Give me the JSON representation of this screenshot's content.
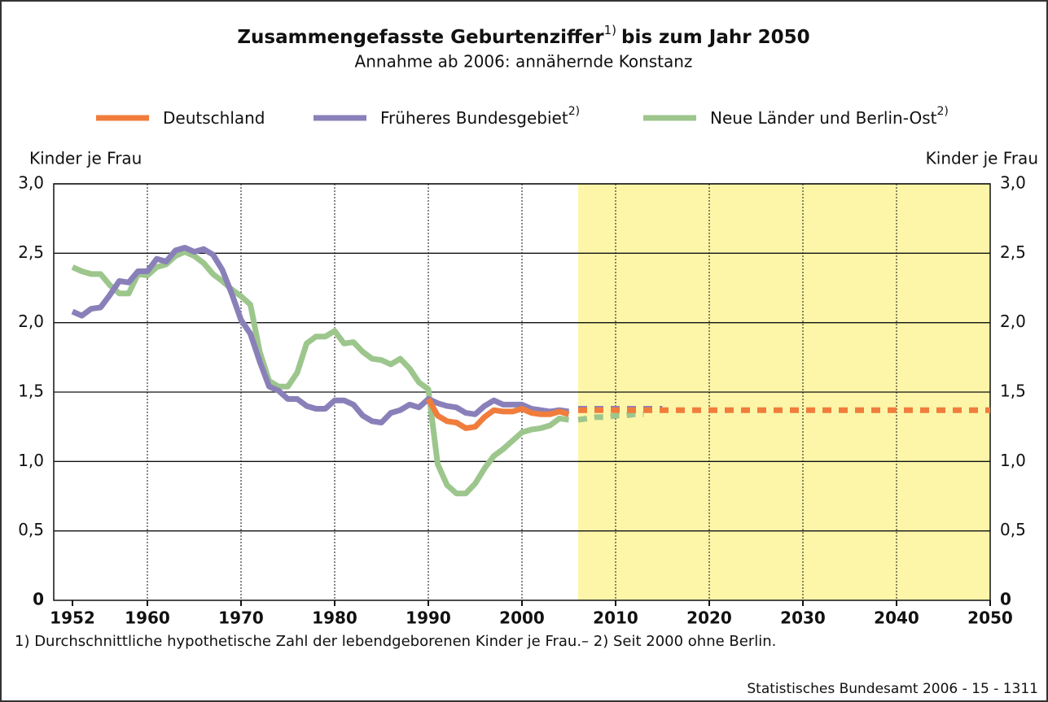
{
  "chart_data": {
    "type": "line",
    "title": "Zusammengefasste Geburtenziffer",
    "title_note": "1)",
    "title_end": "bis zum Jahr 2050",
    "subtitle": "Annahme ab 2006: annähernde Konstanz",
    "y_label": "Kinder je Frau",
    "footnote": "1) Durchschnittliche hypothetische Zahl der lebendgeborenen Kinder je Frau.– 2) Seit 2000 ohne Berlin.",
    "source": "Statistisches Bundesamt 2006 - 15 - 1311",
    "projection_start": 2006,
    "x": [
      1952,
      1953,
      1954,
      1955,
      1956,
      1957,
      1958,
      1959,
      1960,
      1961,
      1962,
      1963,
      1964,
      1965,
      1966,
      1967,
      1968,
      1969,
      1970,
      1971,
      1972,
      1973,
      1974,
      1975,
      1976,
      1977,
      1978,
      1979,
      1980,
      1981,
      1982,
      1983,
      1984,
      1985,
      1986,
      1987,
      1988,
      1989,
      1990,
      1991,
      1992,
      1993,
      1994,
      1995,
      1996,
      1997,
      1998,
      1999,
      2000,
      2001,
      2002,
      2003,
      2004,
      2005,
      2006,
      2007,
      2008,
      2009,
      2010,
      2011,
      2012,
      2013,
      2014,
      2015,
      2016,
      2017,
      2018,
      2019,
      2020,
      2021,
      2022,
      2023,
      2024,
      2025,
      2026,
      2027,
      2028,
      2029,
      2030,
      2031,
      2032,
      2033,
      2034,
      2035,
      2036,
      2037,
      2038,
      2039,
      2040,
      2041,
      2042,
      2043,
      2044,
      2045,
      2046,
      2047,
      2048,
      2049,
      2050
    ],
    "series": [
      {
        "name": "Neue Länder und Berlin-Ost",
        "note": "2)",
        "color": "#9dc68d",
        "values": [
          2.4,
          2.37,
          2.35,
          2.35,
          2.27,
          2.21,
          2.21,
          2.35,
          2.34,
          2.4,
          2.42,
          2.48,
          2.51,
          2.48,
          2.43,
          2.35,
          2.3,
          2.24,
          2.19,
          2.13,
          1.79,
          1.58,
          1.54,
          1.54,
          1.64,
          1.85,
          1.9,
          1.9,
          1.94,
          1.85,
          1.86,
          1.79,
          1.74,
          1.73,
          1.7,
          1.74,
          1.67,
          1.57,
          1.52,
          0.98,
          0.83,
          0.77,
          0.77,
          0.84,
          0.95,
          1.04,
          1.09,
          1.15,
          1.21,
          1.23,
          1.24,
          1.26,
          1.31,
          1.3,
          1.3,
          1.31,
          1.32,
          1.32,
          1.33,
          1.33,
          1.34,
          1.34,
          null,
          null,
          null,
          null,
          null,
          null,
          null,
          null,
          null,
          null,
          null,
          null,
          null,
          null,
          null,
          null,
          null,
          null,
          null,
          null,
          null,
          null,
          null,
          null,
          null,
          null,
          null,
          null,
          null,
          null,
          null,
          null,
          null,
          null,
          null,
          null,
          null
        ]
      },
      {
        "name": "Früheres Bundesgebiet",
        "note": "2)",
        "color": "#8a80b9",
        "values": [
          2.08,
          2.05,
          2.1,
          2.11,
          2.2,
          2.3,
          2.29,
          2.37,
          2.37,
          2.46,
          2.44,
          2.52,
          2.54,
          2.51,
          2.53,
          2.49,
          2.38,
          2.21,
          2.02,
          1.92,
          1.72,
          1.54,
          1.51,
          1.45,
          1.45,
          1.4,
          1.38,
          1.38,
          1.44,
          1.44,
          1.41,
          1.33,
          1.29,
          1.28,
          1.35,
          1.37,
          1.41,
          1.39,
          1.45,
          1.42,
          1.4,
          1.39,
          1.35,
          1.34,
          1.4,
          1.44,
          1.41,
          1.41,
          1.41,
          1.38,
          1.37,
          1.36,
          1.37,
          1.36,
          1.38,
          1.38,
          1.38,
          1.38,
          1.38,
          1.38,
          1.38,
          1.38,
          1.38,
          1.38,
          null,
          null,
          null,
          null,
          null,
          null,
          null,
          null,
          null,
          null,
          null,
          null,
          null,
          null,
          null,
          null,
          null,
          null,
          null,
          null,
          null,
          null,
          null,
          null,
          null,
          null,
          null,
          null,
          null,
          null,
          null,
          null,
          null,
          null,
          null
        ]
      },
      {
        "name": "Deutschland",
        "color": "#f07d3c",
        "values": [
          null,
          null,
          null,
          null,
          null,
          null,
          null,
          null,
          null,
          null,
          null,
          null,
          null,
          null,
          null,
          null,
          null,
          null,
          null,
          null,
          null,
          null,
          null,
          null,
          null,
          null,
          null,
          null,
          null,
          null,
          null,
          null,
          null,
          null,
          null,
          null,
          null,
          null,
          1.45,
          1.33,
          1.29,
          1.28,
          1.24,
          1.25,
          1.32,
          1.37,
          1.36,
          1.36,
          1.38,
          1.35,
          1.34,
          1.34,
          1.36,
          1.34,
          1.37,
          1.37,
          1.37,
          1.37,
          1.37,
          1.37,
          1.37,
          1.37,
          1.37,
          1.37,
          1.37,
          1.37,
          1.37,
          1.37,
          1.37,
          1.37,
          1.37,
          1.37,
          1.37,
          1.37,
          1.37,
          1.37,
          1.37,
          1.37,
          1.37,
          1.37,
          1.37,
          1.37,
          1.37,
          1.37,
          1.37,
          1.37,
          1.37,
          1.37,
          1.37,
          1.37,
          1.37,
          1.37,
          1.37,
          1.37,
          1.37,
          1.37,
          1.37,
          1.37,
          1.37
        ]
      }
    ],
    "legend_order": [
      "Deutschland",
      "Früheres Bundesgebiet",
      "Neue Länder und Berlin-Ost"
    ],
    "xlim": [
      1950,
      2050
    ],
    "xticks": [
      1952,
      1960,
      1970,
      1980,
      1990,
      2000,
      2010,
      2020,
      2030,
      2040,
      2050
    ],
    "ylim": [
      0,
      3
    ],
    "yticks": [
      0,
      {
        "value": 0.5,
        "label": "0,5"
      },
      {
        "value": 1,
        "label": "1,0"
      },
      {
        "value": 1.5,
        "label": "1,5"
      },
      {
        "value": 2,
        "label": "2,0"
      },
      {
        "value": 2.5,
        "label": "2,5"
      },
      {
        "value": 3,
        "label": "3,0"
      }
    ],
    "grid": true
  }
}
